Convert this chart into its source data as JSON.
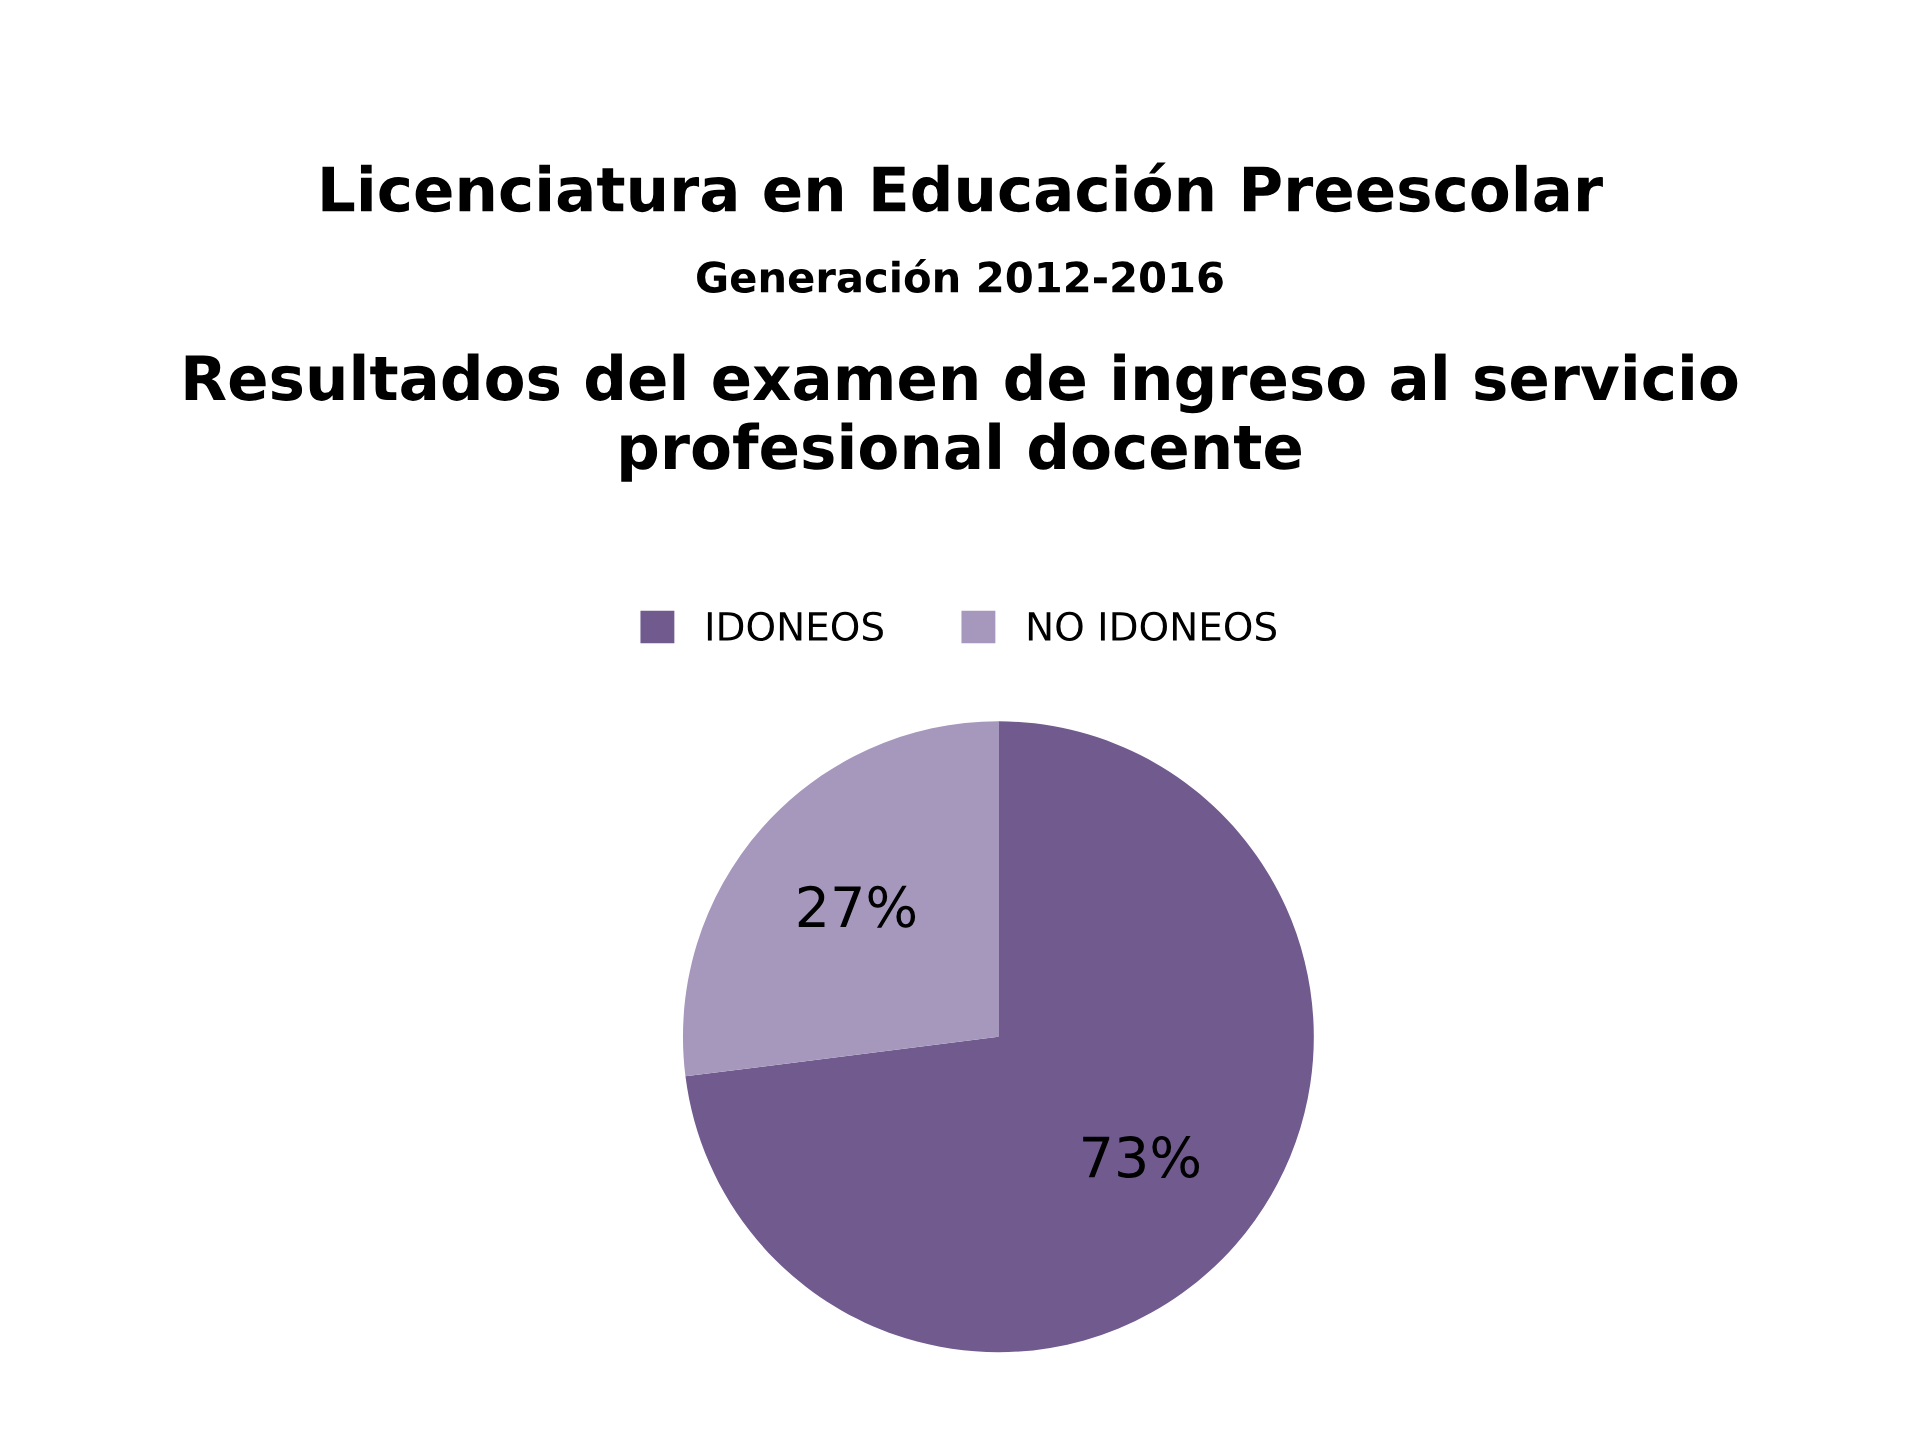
{
  "chart_data": {
    "type": "pie",
    "title": "Licenciatura en Educación Preescolar",
    "subtitle": "Generación 2012-2016",
    "annotations": [
      "Resultados del examen de ingreso al servicio profesional docente"
    ],
    "categories": [
      "IDONEOS",
      "NO IDONEOS"
    ],
    "values": [
      73,
      27
    ],
    "colors": [
      "#705a8e",
      "#a697bd"
    ],
    "value_labels": [
      "73%",
      "27%"
    ],
    "legend": "top"
  }
}
